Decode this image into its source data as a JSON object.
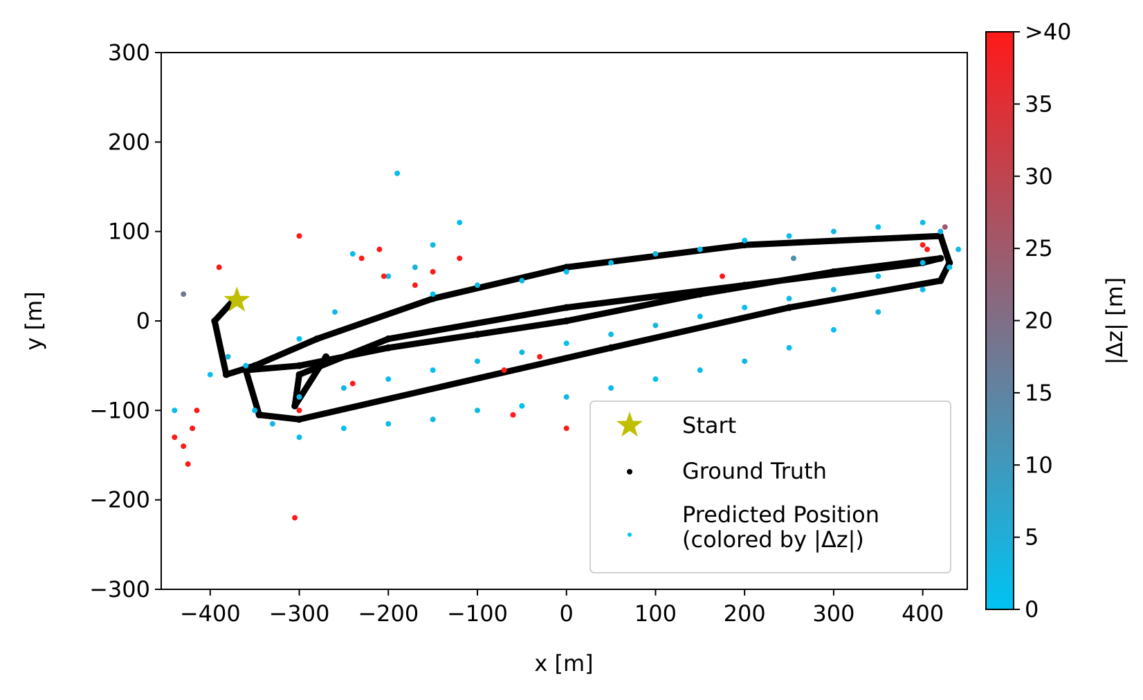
{
  "chart_data": {
    "type": "scatter",
    "title": "",
    "xlabel": "x [m]",
    "ylabel": "y [m]",
    "xlim": [
      -455,
      450
    ],
    "ylim": [
      -300,
      300
    ],
    "x_ticks": [
      -400,
      -300,
      -200,
      -100,
      0,
      100,
      200,
      300,
      400
    ],
    "x_tick_labels": [
      "−400",
      "−300",
      "−200",
      "−100",
      "0",
      "100",
      "200",
      "300",
      "400"
    ],
    "y_ticks": [
      -300,
      -200,
      -100,
      0,
      100,
      200,
      300
    ],
    "y_tick_labels": [
      "−300",
      "−200",
      "−100",
      "0",
      "100",
      "200",
      "300"
    ],
    "grid": false,
    "legend_position": "bottom-right",
    "start": {
      "name": "Start",
      "x": -370,
      "y": 23,
      "color": "#bfbf00",
      "marker": "star"
    },
    "ground_truth": {
      "name": "Ground Truth",
      "color": "#000000",
      "x": [
        -372,
        -395,
        -382,
        -350,
        -280,
        -150,
        0,
        200,
        420,
        430,
        420,
        250,
        50,
        -300,
        -345,
        -360,
        -300,
        -200,
        -100,
        0,
        150,
        300,
        420,
        400,
        200,
        0,
        -200,
        -300,
        -305,
        -270
      ],
      "y": [
        25,
        0,
        -60,
        -50,
        -20,
        25,
        60,
        85,
        95,
        65,
        45,
        15,
        -30,
        -110,
        -105,
        -55,
        -50,
        -30,
        -15,
        0,
        30,
        55,
        70,
        65,
        40,
        15,
        -20,
        -60,
        -95,
        -40
      ]
    },
    "predicted": {
      "name": "Predicted Position\n(colored by |Δz|)",
      "color": "#00c3f3",
      "x": [
        -440,
        -420,
        -400,
        -380,
        -360,
        -300,
        -260,
        -200,
        -170,
        -150,
        -100,
        -50,
        0,
        50,
        100,
        150,
        200,
        250,
        300,
        350,
        400,
        420,
        440,
        430,
        400,
        350,
        300,
        250,
        200,
        150,
        100,
        50,
        0,
        -50,
        -100,
        -150,
        -200,
        -250,
        -300,
        -330,
        -350,
        -300,
        -250,
        -200,
        -150,
        -100,
        -50,
        0,
        50,
        100,
        150,
        200,
        250,
        300,
        350,
        400,
        -190,
        -150,
        -120,
        -240
      ],
      "y": [
        -100,
        -120,
        -60,
        -40,
        -50,
        -20,
        10,
        50,
        60,
        30,
        40,
        45,
        55,
        65,
        75,
        80,
        90,
        95,
        100,
        105,
        110,
        100,
        80,
        60,
        35,
        10,
        -10,
        -30,
        -45,
        -55,
        -65,
        -75,
        -85,
        -95,
        -100,
        -110,
        -115,
        -120,
        -130,
        -115,
        -100,
        -85,
        -75,
        -65,
        -55,
        -45,
        -35,
        -25,
        -15,
        -5,
        5,
        15,
        25,
        35,
        50,
        65,
        165,
        85,
        110,
        75
      ],
      "dz": [
        2,
        3,
        1,
        4,
        2,
        1,
        3,
        2,
        4,
        1,
        2,
        3,
        1,
        2,
        3,
        2,
        1,
        2,
        3,
        1,
        2,
        3,
        2,
        1,
        2,
        3,
        1,
        2,
        3,
        2,
        1,
        2,
        3,
        1,
        2,
        3,
        2,
        1,
        2,
        3,
        1,
        2,
        3,
        2,
        1,
        2,
        3,
        1,
        2,
        3,
        2,
        1,
        2,
        3,
        1,
        2,
        2,
        3,
        1,
        2
      ]
    },
    "outliers": {
      "x": [
        -430,
        -425,
        -420,
        -440,
        -415,
        -390,
        -300,
        -305,
        -210,
        -230,
        -205,
        -170,
        -150,
        -120,
        -70,
        -30,
        0,
        175,
        400,
        405,
        425,
        255,
        -300,
        -240,
        -60,
        -430
      ],
      "y": [
        -140,
        -160,
        -120,
        -130,
        -100,
        60,
        95,
        -220,
        80,
        70,
        50,
        40,
        55,
        70,
        -55,
        -40,
        -120,
        50,
        85,
        80,
        105,
        70,
        -100,
        -70,
        -105,
        30
      ],
      "dz": [
        45,
        45,
        45,
        45,
        45,
        45,
        45,
        45,
        45,
        45,
        45,
        45,
        45,
        45,
        45,
        45,
        45,
        45,
        45,
        45,
        25,
        12,
        45,
        45,
        45,
        18
      ]
    },
    "colorbar": {
      "label": "|Δz| [m]",
      "min": 0,
      "max": 40,
      "ticks": [
        0,
        5,
        10,
        15,
        20,
        25,
        30,
        35,
        40
      ],
      "tick_labels": [
        "0",
        "5",
        "10",
        "15",
        "20",
        "25",
        "30",
        "35",
        ">40"
      ],
      "color_low": "#00c3f3",
      "color_high": "#ff1a1a"
    }
  }
}
